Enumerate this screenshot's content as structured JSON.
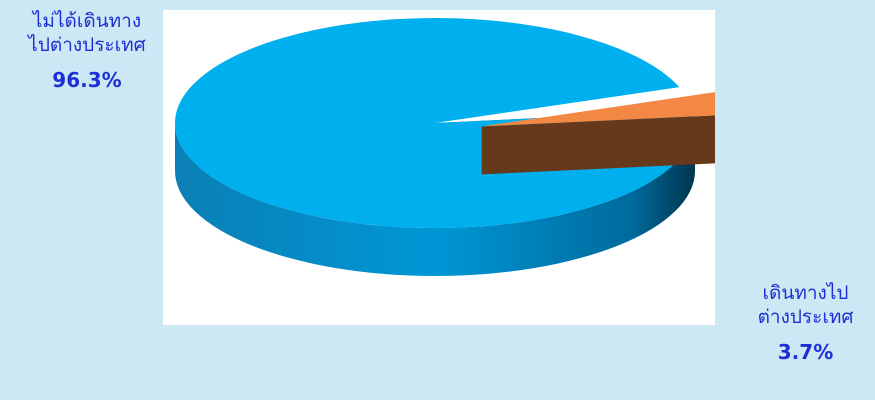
{
  "chart_data": {
    "type": "pie",
    "title": "",
    "slices": [
      {
        "label_line1": "ไม่ได้เดินทาง",
        "label_line2": "ไปต่างประเทศ",
        "value": 96.3,
        "value_label": "96.3%",
        "color": "#00b0ee"
      },
      {
        "label_line1": "เดินทางไป",
        "label_line2": "ต่างประเทศ",
        "value": 3.7,
        "value_label": "3.7%",
        "color": "#f28844"
      }
    ],
    "style": "3d-exploded"
  },
  "colors": {
    "page_background": "#cce8f4",
    "plot_background": "#ffffff",
    "label_text": "#1d2fd6"
  }
}
